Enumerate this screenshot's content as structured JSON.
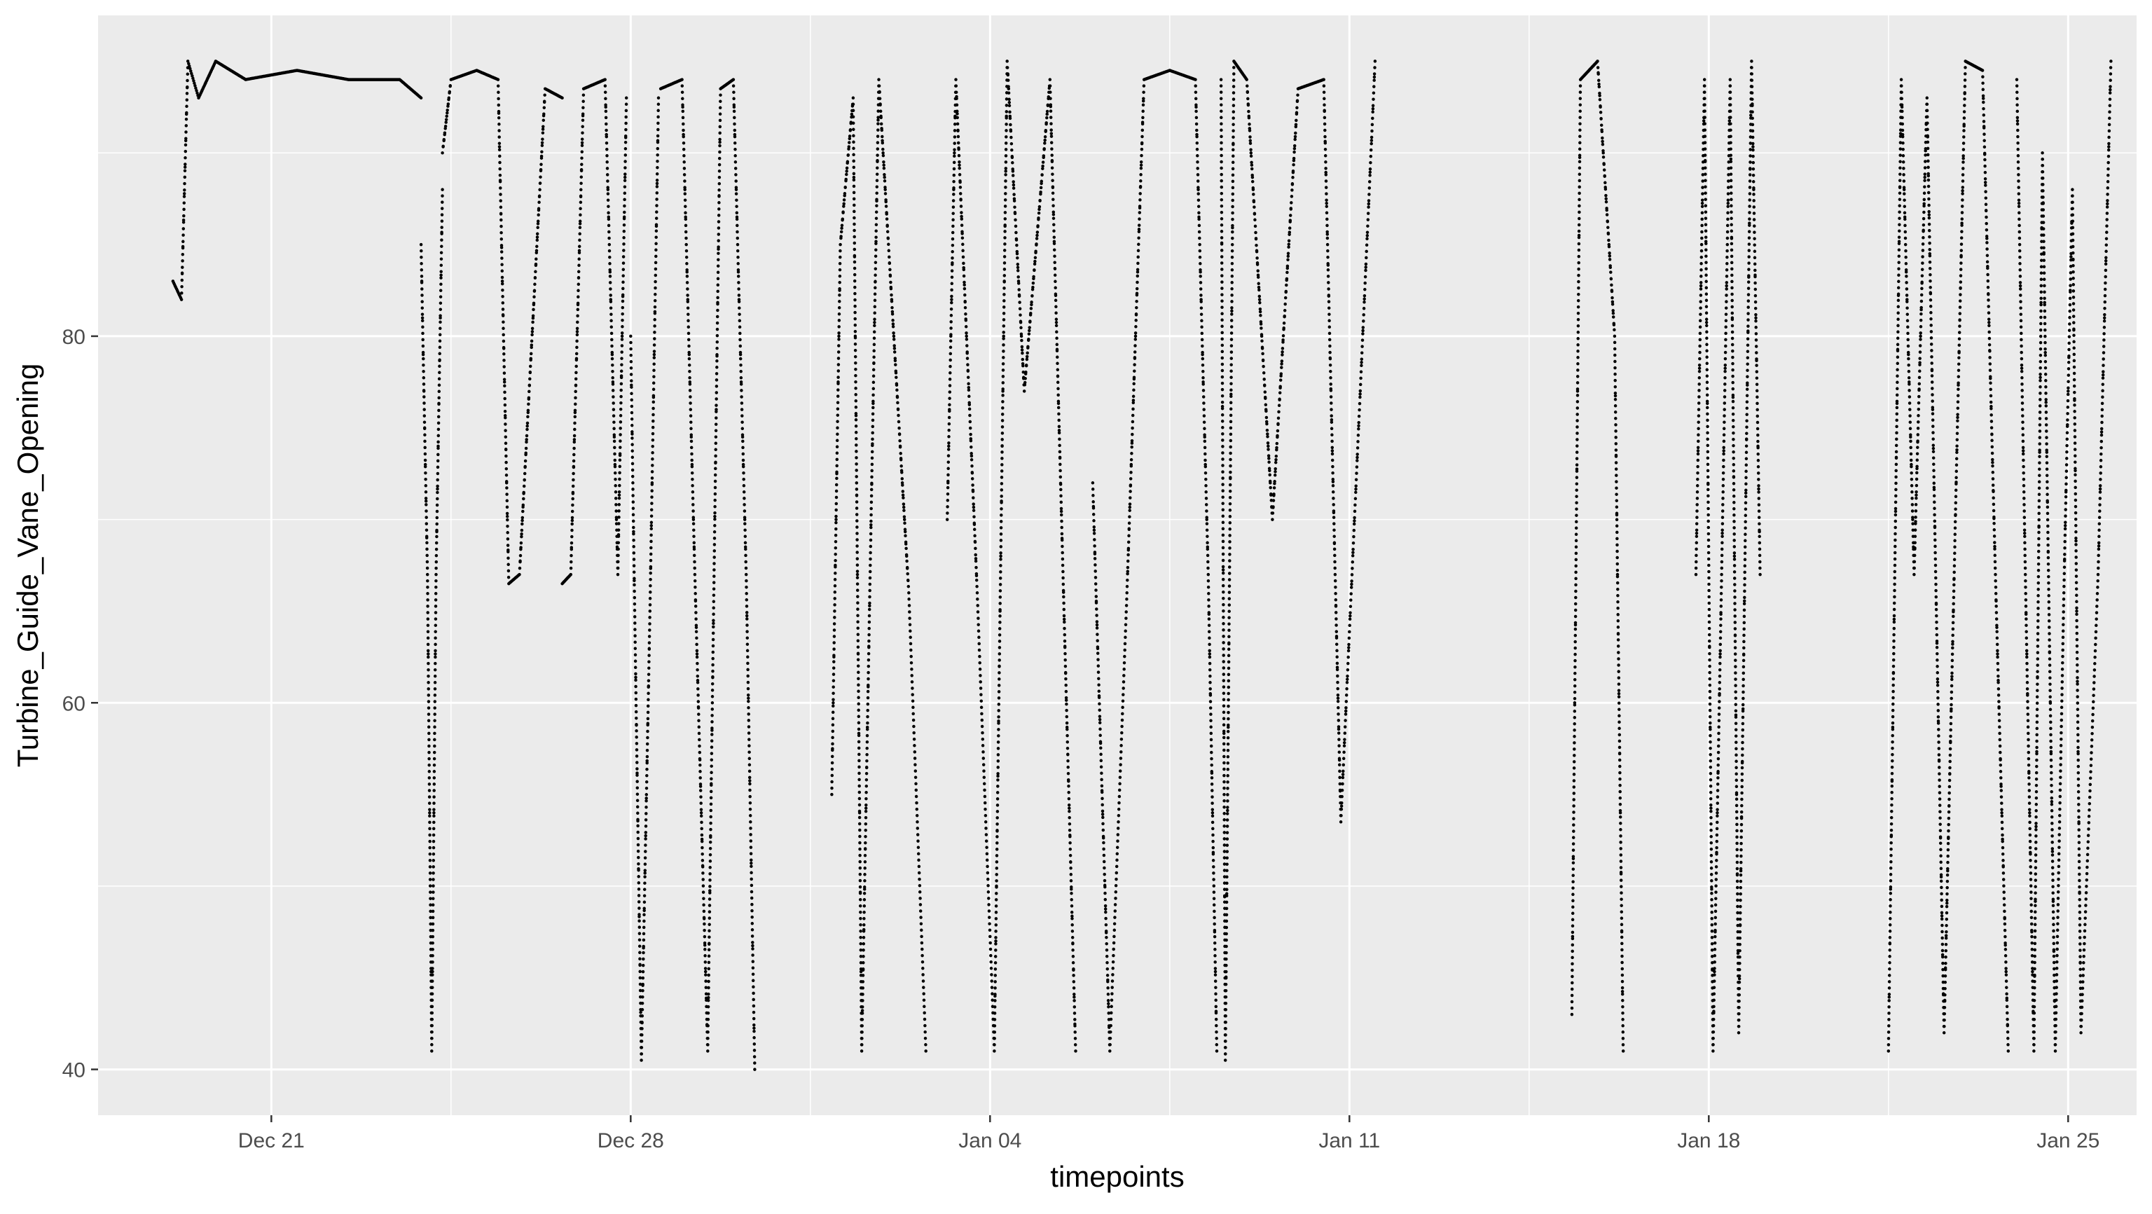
{
  "chart_data": {
    "type": "scatter",
    "title": "",
    "xlabel": "timepoints",
    "ylabel": "Turbine_Guide_Vane_Opening",
    "x_axis": {
      "kind": "date",
      "range": [
        "2024-12-17T15:00",
        "2025-01-26T08:00"
      ],
      "ticks": [
        "2024-12-21",
        "2024-12-28",
        "2025-01-04",
        "2025-01-11",
        "2025-01-18",
        "2025-01-25"
      ],
      "tick_labels": [
        "Dec 21",
        "Dec 28",
        "Jan 04",
        "Jan 11",
        "Jan 18",
        "Jan 25"
      ]
    },
    "y_axis": {
      "range": [
        37.5,
        97.5
      ],
      "ticks": [
        40,
        60,
        80
      ],
      "tick_labels": [
        "40",
        "60",
        "80"
      ]
    },
    "grid": true,
    "legend": "none",
    "colors": {
      "panel": "#EBEBEB",
      "grid": "#FFFFFF",
      "points": "#000000",
      "axis_text": "#4D4D4D",
      "title_text": "#000000"
    },
    "series": [
      {
        "segments": [
          {
            "t": [
              "2024-12-19T02:00",
              "2024-12-19T06:00",
              "2024-12-19T09:00",
              "2024-12-19T14:00",
              "2024-12-19T22:00",
              "2024-12-20T12:00",
              "2024-12-21T12:00",
              "2024-12-22T12:00",
              "2024-12-23T12:00",
              "2024-12-23T22:00"
            ],
            "v": [
              83,
              82,
              95,
              93,
              95,
              94,
              94.5,
              94,
              94,
              93
            ]
          },
          {
            "t": [
              "2024-12-23T22:00",
              "2024-12-24T01:00",
              "2024-12-24T03:00",
              "2024-12-24T05:00",
              "2024-12-24T08:00"
            ],
            "v": [
              85,
              67,
              41,
              67,
              88
            ]
          },
          {
            "t": [
              "2024-12-24T08:00",
              "2024-12-24T12:00",
              "2024-12-25T00:00",
              "2024-12-25T10:00",
              "2024-12-25T15:00",
              "2024-12-25T20:00",
              "2024-12-26T08:00",
              "2024-12-26T16:00"
            ],
            "v": [
              90,
              94,
              94.5,
              94,
              66.5,
              67,
              93.5,
              93
            ]
          },
          {
            "t": [
              "2024-12-26T16:00",
              "2024-12-26T20:00",
              "2024-12-27T02:00",
              "2024-12-27T12:00",
              "2024-12-27T18:00",
              "2024-12-27T22:00"
            ],
            "v": [
              66.5,
              67,
              93.5,
              94,
              67,
              93
            ]
          },
          {
            "t": [
              "2024-12-28T00:00",
              "2024-12-28T02:00",
              "2024-12-28T05:00",
              "2024-12-28T09:00",
              "2024-12-28T13:00"
            ],
            "v": [
              80,
              64,
              40.5,
              65,
              93
            ]
          },
          {
            "t": [
              "2024-12-28T14:00",
              "2024-12-29T00:00",
              "2024-12-29T06:00",
              "2024-12-29T12:00",
              "2024-12-29T18:00",
              "2024-12-30T00:00",
              "2024-12-30T06:00",
              "2024-12-30T10:00"
            ],
            "v": [
              93.5,
              94,
              67,
              41,
              93.5,
              94,
              67,
              40
            ]
          },
          {
            "t": [
              "2024-12-31T22:00",
              "2025-01-01T02:00",
              "2025-01-01T08:00",
              "2025-01-01T12:00",
              "2025-01-01T20:00",
              "2025-01-02T10:00",
              "2025-01-02T18:00"
            ],
            "v": [
              55,
              85,
              93,
              41,
              94,
              66,
              41
            ]
          },
          {
            "t": [
              "2025-01-03T04:00",
              "2025-01-03T08:00",
              "2025-01-03T18:00",
              "2025-01-04T02:00",
              "2025-01-04T08:00",
              "2025-01-04T16:00",
              "2025-01-05T04:00",
              "2025-01-05T16:00"
            ],
            "v": [
              70,
              94,
              66,
              41,
              95,
              77,
              94,
              41
            ]
          },
          {
            "t": [
              "2025-01-06T00:00",
              "2025-01-06T08:00",
              "2025-01-06T16:00",
              "2025-01-07T00:00",
              "2025-01-07T12:00",
              "2025-01-08T00:00",
              "2025-01-08T06:00",
              "2025-01-08T10:00"
            ],
            "v": [
              72,
              41,
              66,
              94,
              94.5,
              94,
              67,
              41
            ]
          },
          {
            "t": [
              "2025-01-08T12:00",
              "2025-01-08T14:00",
              "2025-01-08T18:00",
              "2025-01-09T00:00",
              "2025-01-09T12:00",
              "2025-01-10T00:00",
              "2025-01-10T12:00",
              "2025-01-10T20:00",
              "2025-01-11T12:00"
            ],
            "v": [
              94,
              40.5,
              95,
              94,
              70,
              93.5,
              94,
              53.5,
              95
            ]
          },
          {
            "t": [
              "2025-01-15T08:00",
              "2025-01-15T12:00",
              "2025-01-15T20:00",
              "2025-01-16T04:00",
              "2025-01-16T08:00"
            ],
            "v": [
              43,
              94,
              95,
              80,
              41
            ]
          },
          {
            "t": [
              "2025-01-17T18:00",
              "2025-01-17T22:00",
              "2025-01-18T02:00",
              "2025-01-18T06:00",
              "2025-01-18T10:00",
              "2025-01-18T14:00",
              "2025-01-18T20:00",
              "2025-01-19T00:00"
            ],
            "v": [
              67,
              94,
              41,
              67,
              94,
              42,
              95,
              67
            ]
          },
          {
            "t": [
              "2025-01-21T12:00",
              "2025-01-21T18:00",
              "2025-01-22T00:00",
              "2025-01-22T06:00",
              "2025-01-22T14:00",
              "2025-01-23T00:00",
              "2025-01-23T08:00",
              "2025-01-23T14:00",
              "2025-01-23T20:00"
            ],
            "v": [
              41,
              94,
              67,
              93,
              42,
              95,
              94.5,
              67,
              41
            ]
          },
          {
            "t": [
              "2025-01-24T00:00",
              "2025-01-24T04:00",
              "2025-01-24T08:00",
              "2025-01-24T12:00",
              "2025-01-24T18:00",
              "2025-01-24T22:00",
              "2025-01-25T02:00",
              "2025-01-25T06:00",
              "2025-01-25T14:00",
              "2025-01-25T20:00"
            ],
            "v": [
              94,
              67,
              41,
              90,
              41,
              66,
              88,
              42,
              67,
              95
            ]
          }
        ]
      }
    ]
  }
}
